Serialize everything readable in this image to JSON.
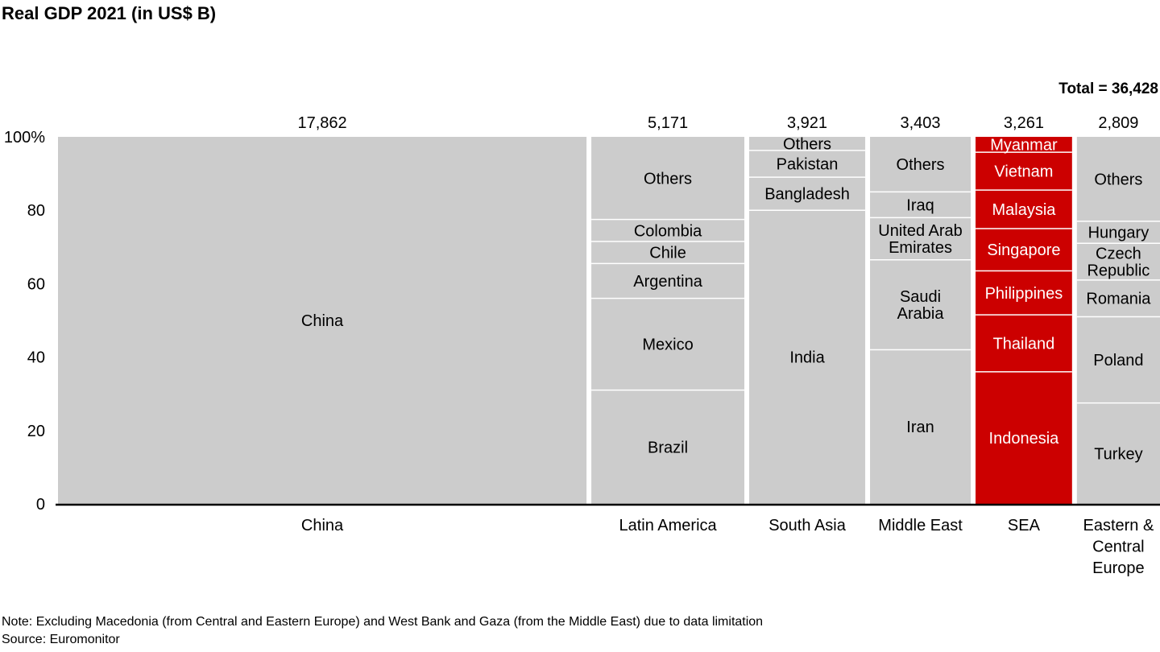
{
  "chart_data": {
    "type": "marimekko",
    "title": "Real GDP 2021 (in US$ B)",
    "total_label": "Total = 36,428",
    "ylim": [
      0,
      100
    ],
    "y_ticks": [
      "0",
      "20",
      "40",
      "60",
      "80",
      "100%"
    ],
    "y_tick_values": [
      0,
      20,
      40,
      60,
      80,
      100
    ],
    "columns": [
      {
        "name": "China",
        "label": "China",
        "total": 17862,
        "total_label": "17,862",
        "highlight": false,
        "segments": [
          {
            "name": "China",
            "label": "China",
            "share": 100
          }
        ]
      },
      {
        "name": "Latin America",
        "label": "Latin America",
        "total": 5171,
        "total_label": "5,171",
        "highlight": false,
        "segments": [
          {
            "name": "Brazil",
            "label": "Brazil",
            "share": 31
          },
          {
            "name": "Mexico",
            "label": "Mexico",
            "share": 25
          },
          {
            "name": "Argentina",
            "label": "Argentina",
            "share": 9.5
          },
          {
            "name": "Chile",
            "label": "Chile",
            "share": 6
          },
          {
            "name": "Colombia",
            "label": "Colombia",
            "share": 6
          },
          {
            "name": "Others",
            "label": "Others",
            "share": 22.5
          }
        ]
      },
      {
        "name": "South Asia",
        "label": "South Asia",
        "total": 3921,
        "total_label": "3,921",
        "highlight": false,
        "segments": [
          {
            "name": "India",
            "label": "India",
            "share": 80
          },
          {
            "name": "Bangladesh",
            "label": "Bangladesh",
            "share": 9
          },
          {
            "name": "Pakistan",
            "label": "Pakistan",
            "share": 7.3
          },
          {
            "name": "Others",
            "label": "Others",
            "share": 3.7
          }
        ]
      },
      {
        "name": "Middle East",
        "label": "Middle East",
        "total": 3403,
        "total_label": "3,403",
        "highlight": false,
        "segments": [
          {
            "name": "Iran",
            "label": "Iran",
            "share": 42
          },
          {
            "name": "Saudi Arabia",
            "label": "Saudi Arabia",
            "share": 24.5
          },
          {
            "name": "United Arab Emirates",
            "label": "United Arab Emirates",
            "share": 11.5
          },
          {
            "name": "Iraq",
            "label": "Iraq",
            "share": 7
          },
          {
            "name": "Others",
            "label": "Others",
            "share": 15
          }
        ]
      },
      {
        "name": "SEA",
        "label": "SEA",
        "total": 3261,
        "total_label": "3,261",
        "highlight": true,
        "segments": [
          {
            "name": "Indonesia",
            "label": "Indonesia",
            "share": 36
          },
          {
            "name": "Thailand",
            "label": "Thailand",
            "share": 15.5
          },
          {
            "name": "Philippines",
            "label": "Philippines",
            "share": 12
          },
          {
            "name": "Singapore",
            "label": "Singapore",
            "share": 11.5
          },
          {
            "name": "Malaysia",
            "label": "Malaysia",
            "share": 10.5
          },
          {
            "name": "Vietnam",
            "label": "Vietnam",
            "share": 10.3
          },
          {
            "name": "Myanmar",
            "label": "Myanmar",
            "share": 4.2
          }
        ]
      },
      {
        "name": "Eastern & Central Europe",
        "label": "Eastern & Central Europe",
        "total": 2809,
        "total_label": "2,809",
        "highlight": false,
        "segments": [
          {
            "name": "Turkey",
            "label": "Turkey",
            "share": 27.5
          },
          {
            "name": "Poland",
            "label": "Poland",
            "share": 23.5
          },
          {
            "name": "Romania",
            "label": "Romania",
            "share": 10
          },
          {
            "name": "Czech Republic",
            "label": "Czech Republic",
            "share": 10
          },
          {
            "name": "Hungary",
            "label": "Hungary",
            "share": 6
          },
          {
            "name": "Others",
            "label": "Others",
            "share": 23
          }
        ]
      }
    ]
  },
  "colors": {
    "segment_gray": "#cccccc",
    "segment_red": "#cc0000",
    "label_dark": "#000000",
    "label_light": "#ffffff",
    "axis": "#000000"
  },
  "notes": {
    "note": "Note: Excluding Macedonia (from Central and Eastern Europe) and West Bank and Gaza (from the Middle East) due to data limitation",
    "source": "Source: Euromonitor"
  }
}
